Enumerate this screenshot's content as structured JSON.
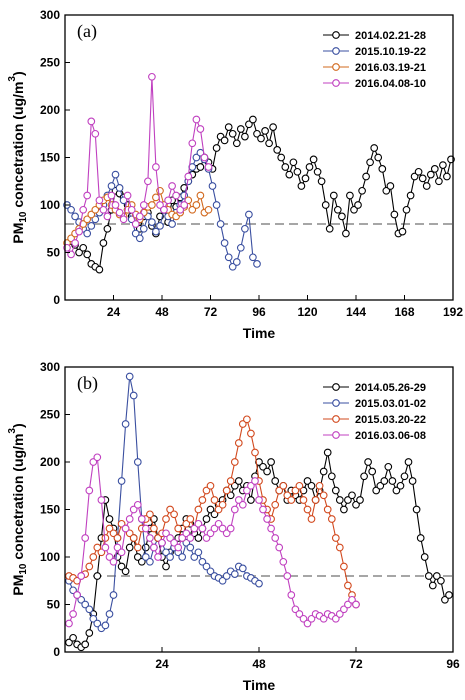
{
  "chart_data": [
    {
      "type": "line",
      "panel_label": "(a)",
      "xlabel": "Time",
      "ylabel_main": "PM",
      "ylabel_sub": "10",
      "ylabel_rest": " concetration (ug/m",
      "ylabel_sup": "3",
      "ylabel_end": ")",
      "xlim": [
        0,
        192
      ],
      "ylim": [
        0,
        300
      ],
      "xticks": [
        "24",
        "48",
        "72",
        "96",
        "120",
        "144",
        "168",
        "192"
      ],
      "xtick_values": [
        24,
        48,
        72,
        96,
        120,
        144,
        168,
        192
      ],
      "yticks": [
        "0",
        "50",
        "100",
        "150",
        "200",
        "250",
        "300"
      ],
      "ytick_values": [
        0,
        50,
        100,
        150,
        200,
        250,
        300
      ],
      "reference_line": 80,
      "legend_position": "top-right",
      "series": [
        {
          "name": "2014.02.21-28",
          "color": "#000000",
          "x": [
            3,
            5,
            7,
            9,
            11,
            13,
            15,
            17,
            19,
            21,
            23,
            25,
            27,
            29,
            31,
            33,
            35,
            37,
            39,
            41,
            43,
            45,
            47,
            49,
            51,
            53,
            55,
            57,
            59,
            61,
            63,
            65,
            67,
            69,
            71,
            73,
            75,
            77,
            79,
            81,
            83,
            85,
            87,
            89,
            91,
            93,
            95,
            97,
            99,
            101,
            103,
            105,
            107,
            109,
            111,
            113,
            115,
            117,
            119,
            121,
            123,
            125,
            127,
            129,
            131,
            133,
            135,
            137,
            139,
            141,
            143,
            145,
            147,
            149,
            151,
            153,
            155,
            157,
            159,
            161,
            163,
            165,
            167,
            169,
            171,
            173,
            175,
            177,
            179,
            181,
            183,
            185,
            187,
            189,
            191
          ],
          "values": [
            62,
            58,
            50,
            55,
            48,
            38,
            35,
            32,
            60,
            75,
            95,
            115,
            112,
            108,
            100,
            88,
            85,
            75,
            88,
            92,
            78,
            70,
            88,
            95,
            82,
            105,
            98,
            108,
            118,
            125,
            132,
            138,
            140,
            150,
            145,
            138,
            160,
            172,
            168,
            182,
            175,
            165,
            180,
            172,
            185,
            190,
            175,
            170,
            178,
            165,
            182,
            158,
            150,
            140,
            132,
            145,
            135,
            120,
            128,
            140,
            148,
            135,
            125,
            100,
            75,
            110,
            95,
            88,
            70,
            110,
            95,
            100,
            115,
            130,
            145,
            160,
            150,
            138,
            115,
            120,
            90,
            70,
            72,
            95,
            110,
            130,
            135,
            128,
            120,
            132,
            138,
            125,
            142,
            130,
            148
          ]
        },
        {
          "name": "2015.10.19-22",
          "color": "#3a4fa0",
          "x": [
            1,
            3,
            5,
            7,
            9,
            11,
            13,
            15,
            17,
            19,
            21,
            23,
            25,
            27,
            29,
            31,
            33,
            35,
            37,
            39,
            41,
            43,
            45,
            47,
            49,
            51,
            53,
            55,
            57,
            59,
            61,
            63,
            65,
            67,
            69,
            71,
            73,
            75,
            77,
            79,
            81,
            83,
            85,
            87,
            89,
            91,
            93,
            95
          ],
          "values": [
            100,
            95,
            88,
            82,
            75,
            70,
            78,
            85,
            92,
            100,
            110,
            120,
            132,
            118,
            105,
            95,
            85,
            70,
            65,
            75,
            88,
            82,
            72,
            78,
            95,
            88,
            80,
            92,
            100,
            110,
            125,
            140,
            150,
            155,
            148,
            138,
            120,
            100,
            80,
            60,
            45,
            35,
            40,
            55,
            75,
            90,
            45,
            38
          ]
        },
        {
          "name": "2016.03.19-21",
          "color": "#d2691e",
          "x": [
            1,
            3,
            5,
            7,
            9,
            11,
            13,
            15,
            17,
            19,
            21,
            23,
            25,
            27,
            29,
            31,
            33,
            35,
            37,
            39,
            41,
            43,
            45,
            47,
            49,
            51,
            53,
            55,
            57,
            59,
            61,
            63,
            65,
            67,
            69,
            71
          ],
          "values": [
            60,
            65,
            70,
            75,
            80,
            85,
            90,
            95,
            100,
            105,
            108,
            100,
            95,
            90,
            88,
            95,
            100,
            90,
            85,
            92,
            98,
            100,
            108,
            115,
            100,
            95,
            90,
            88,
            92,
            98,
            105,
            95,
            100,
            110,
            92,
            95
          ]
        },
        {
          "name": "2016.04.08-10",
          "color": "#c040c0",
          "x": [
            1,
            3,
            5,
            7,
            9,
            11,
            13,
            15,
            17,
            19,
            21,
            23,
            25,
            27,
            29,
            31,
            33,
            35,
            37,
            39,
            41,
            43,
            45,
            47,
            49,
            51,
            53,
            55,
            57,
            59,
            61,
            63,
            65,
            67,
            69,
            71
          ],
          "values": [
            55,
            48,
            60,
            72,
            95,
            110,
            188,
            175,
            105,
            95,
            88,
            110,
            100,
            92,
            85,
            110,
            95,
            80,
            88,
            100,
            125,
            235,
            140,
            100,
            95,
            105,
            120,
            110,
            95,
            100,
            130,
            165,
            190,
            180,
            150,
            140
          ]
        }
      ]
    },
    {
      "type": "line",
      "panel_label": "(b)",
      "xlabel": "Time",
      "ylabel_main": "PM",
      "ylabel_sub": "10",
      "ylabel_rest": " concetration (ug/m",
      "ylabel_sup": "3",
      "ylabel_end": ")",
      "xlim": [
        0,
        96
      ],
      "ylim": [
        0,
        300
      ],
      "xticks": [
        "24",
        "48",
        "72",
        "96"
      ],
      "xtick_values": [
        24,
        48,
        72,
        96
      ],
      "yticks": [
        "0",
        "50",
        "100",
        "150",
        "200",
        "250",
        "300"
      ],
      "ytick_values": [
        0,
        50,
        100,
        150,
        200,
        250,
        300
      ],
      "reference_line": 80,
      "legend_position": "top-right",
      "series": [
        {
          "name": "2014.05.26-29",
          "color": "#000000",
          "x": [
            1,
            2,
            3,
            4,
            5,
            6,
            7,
            8,
            9,
            10,
            11,
            12,
            13,
            14,
            15,
            16,
            17,
            18,
            19,
            20,
            21,
            22,
            23,
            24,
            25,
            26,
            27,
            28,
            29,
            30,
            31,
            32,
            33,
            34,
            35,
            36,
            37,
            38,
            39,
            40,
            41,
            42,
            43,
            44,
            45,
            46,
            47,
            48,
            49,
            50,
            51,
            52,
            53,
            54,
            55,
            56,
            57,
            58,
            59,
            60,
            61,
            62,
            63,
            64,
            65,
            66,
            67,
            68,
            69,
            70,
            71,
            72,
            73,
            74,
            75,
            76,
            77,
            78,
            79,
            80,
            81,
            82,
            83,
            84,
            85,
            86,
            87,
            88,
            89,
            90,
            91,
            92,
            93,
            94,
            95
          ],
          "values": [
            10,
            15,
            8,
            5,
            8,
            20,
            40,
            80,
            120,
            160,
            140,
            130,
            100,
            90,
            85,
            110,
            120,
            100,
            95,
            110,
            130,
            140,
            120,
            100,
            90,
            105,
            110,
            120,
            130,
            140,
            135,
            125,
            120,
            130,
            140,
            150,
            145,
            155,
            160,
            170,
            165,
            175,
            180,
            170,
            175,
            160,
            185,
            200,
            195,
            190,
            200,
            180,
            170,
            175,
            160,
            170,
            165,
            160,
            170,
            180,
            175,
            160,
            170,
            190,
            210,
            185,
            170,
            160,
            150,
            160,
            165,
            155,
            160,
            185,
            200,
            190,
            170,
            175,
            180,
            195,
            180,
            170,
            175,
            185,
            200,
            180,
            150,
            120,
            100,
            80,
            70,
            80,
            75,
            55,
            60
          ]
        },
        {
          "name": "2015.03.01-02",
          "color": "#3a4fa0",
          "x": [
            1,
            2,
            3,
            4,
            5,
            6,
            7,
            8,
            9,
            10,
            11,
            12,
            13,
            14,
            15,
            16,
            17,
            18,
            19,
            20,
            21,
            22,
            23,
            24,
            25,
            26,
            27,
            28,
            29,
            30,
            31,
            32,
            33,
            34,
            35,
            36,
            37,
            38,
            39,
            40,
            41,
            42,
            43,
            44,
            45,
            46,
            47,
            48
          ],
          "values": [
            75,
            65,
            60,
            55,
            50,
            45,
            35,
            30,
            25,
            28,
            40,
            60,
            120,
            180,
            240,
            290,
            270,
            200,
            140,
            100,
            95,
            110,
            120,
            115,
            105,
            100,
            110,
            105,
            100,
            115,
            110,
            100,
            105,
            95,
            90,
            85,
            80,
            78,
            75,
            80,
            85,
            82,
            90,
            88,
            80,
            78,
            75,
            72
          ]
        },
        {
          "name": "2015.03.20-22",
          "color": "#d2491e",
          "x": [
            1,
            2,
            3,
            4,
            5,
            6,
            7,
            8,
            9,
            10,
            11,
            12,
            13,
            14,
            15,
            16,
            17,
            18,
            19,
            20,
            21,
            22,
            23,
            24,
            25,
            26,
            27,
            28,
            29,
            30,
            31,
            32,
            33,
            34,
            35,
            36,
            37,
            38,
            39,
            40,
            41,
            42,
            43,
            44,
            45,
            46,
            47,
            48,
            49,
            50,
            51,
            52,
            53,
            54,
            55,
            56,
            57,
            58,
            59,
            60,
            61,
            62,
            63,
            64,
            65,
            66,
            67,
            68,
            69,
            70,
            71,
            72
          ],
          "values": [
            80,
            78,
            75,
            80,
            82,
            90,
            100,
            110,
            105,
            120,
            130,
            125,
            120,
            135,
            130,
            125,
            120,
            110,
            130,
            140,
            145,
            130,
            120,
            125,
            140,
            150,
            145,
            130,
            120,
            135,
            140,
            130,
            150,
            160,
            170,
            175,
            160,
            150,
            155,
            170,
            180,
            200,
            220,
            240,
            245,
            230,
            210,
            180,
            160,
            150,
            140,
            155,
            170,
            175,
            165,
            160,
            170,
            175,
            160,
            150,
            140,
            160,
            175,
            165,
            150,
            140,
            120,
            110,
            90,
            70,
            60,
            50
          ]
        },
        {
          "name": "2016.03.06-08",
          "color": "#c040c0",
          "x": [
            1,
            2,
            3,
            4,
            5,
            6,
            7,
            8,
            9,
            10,
            11,
            12,
            13,
            14,
            15,
            16,
            17,
            18,
            19,
            20,
            21,
            22,
            23,
            24,
            25,
            26,
            27,
            28,
            29,
            30,
            31,
            32,
            33,
            34,
            35,
            36,
            37,
            38,
            39,
            40,
            41,
            42,
            43,
            44,
            45,
            46,
            47,
            48,
            49,
            50,
            51,
            52,
            53,
            54,
            55,
            56,
            57,
            58,
            59,
            60,
            61,
            62,
            63,
            64,
            65,
            66,
            67,
            68,
            69,
            70,
            71,
            72
          ],
          "values": [
            30,
            40,
            60,
            80,
            120,
            170,
            200,
            205,
            160,
            110,
            100,
            95,
            110,
            105,
            130,
            140,
            150,
            155,
            140,
            130,
            120,
            110,
            100,
            115,
            125,
            120,
            115,
            110,
            120,
            125,
            120,
            130,
            135,
            130,
            120,
            125,
            130,
            135,
            130,
            125,
            130,
            150,
            160,
            155,
            170,
            175,
            180,
            160,
            150,
            140,
            130,
            120,
            110,
            95,
            80,
            60,
            45,
            40,
            35,
            30,
            35,
            40,
            38,
            35,
            40,
            38,
            35,
            40,
            45,
            50,
            55,
            50
          ]
        }
      ]
    }
  ]
}
